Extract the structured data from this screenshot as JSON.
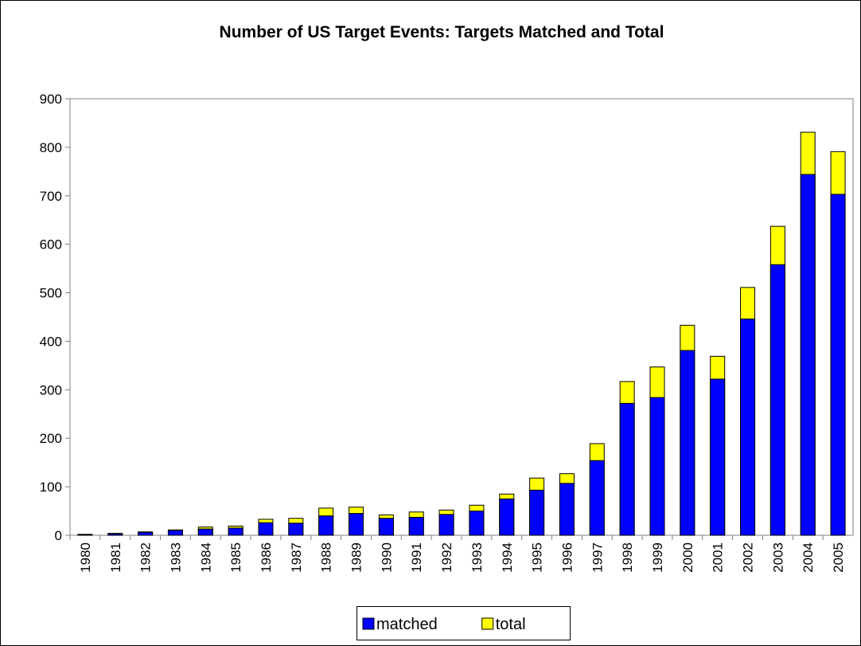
{
  "chart_data": {
    "type": "bar",
    "title": "Number of US Target Events: Targets Matched and Total",
    "categories": [
      "1980",
      "1981",
      "1982",
      "1983",
      "1984",
      "1985",
      "1986",
      "1987",
      "1988",
      "1989",
      "1990",
      "1991",
      "1992",
      "1993",
      "1994",
      "1995",
      "1996",
      "1997",
      "1998",
      "1999",
      "2000",
      "2001",
      "2002",
      "2003",
      "2004",
      "2005"
    ],
    "series": [
      {
        "name": "total",
        "color": "#ffff00",
        "values": [
          2,
          4,
          7,
          11,
          17,
          19,
          33,
          35,
          56,
          58,
          42,
          48,
          52,
          62,
          85,
          118,
          127,
          189,
          317,
          347,
          433,
          369,
          511,
          637,
          831,
          791
        ]
      },
      {
        "name": "matched",
        "color": "#0000ff",
        "values": [
          1,
          3,
          6,
          10,
          13,
          15,
          26,
          25,
          40,
          45,
          35,
          37,
          43,
          50,
          75,
          93,
          107,
          154,
          272,
          284,
          381,
          322,
          446,
          558,
          744,
          703
        ]
      }
    ],
    "legend_order": [
      "matched",
      "total"
    ],
    "ylim": [
      0,
      900
    ],
    "yticks": [
      0,
      100,
      200,
      300,
      400,
      500,
      600,
      700,
      800,
      900
    ],
    "grid": false
  }
}
